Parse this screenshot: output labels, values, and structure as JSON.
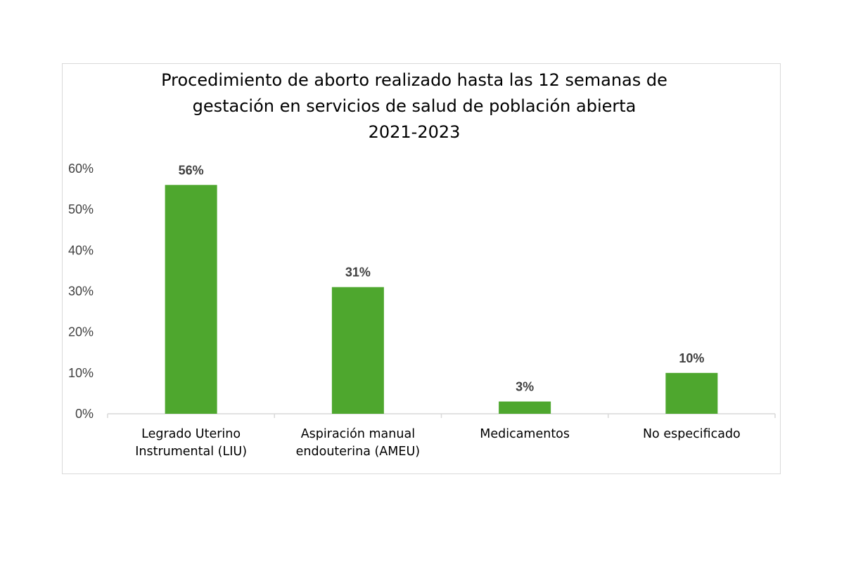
{
  "chart_data": {
    "type": "bar",
    "title_lines": [
      "Procedimiento de aborto realizado hasta las 12 semanas de",
      "gestación en servicios de salud de población abierta",
      "2021-2023"
    ],
    "categories": [
      [
        "Legrado Uterino",
        "Instrumental (LIU)"
      ],
      [
        "Aspiración manual",
        "endouterina (AMEU)"
      ],
      [
        "Medicamentos"
      ],
      [
        "No especificado"
      ]
    ],
    "values": [
      56,
      31,
      3,
      10
    ],
    "data_labels": [
      "56%",
      "31%",
      "3%",
      "10%"
    ],
    "y_ticks": [
      "0%",
      "10%",
      "20%",
      "30%",
      "40%",
      "50%",
      "60%"
    ],
    "ylim": [
      0,
      60
    ],
    "xlabel": "",
    "ylabel": "",
    "grid": false,
    "legend": "none",
    "bar_color": "#4ea72e",
    "text_color": "#404040",
    "axis_color": "#d9d9d9"
  }
}
